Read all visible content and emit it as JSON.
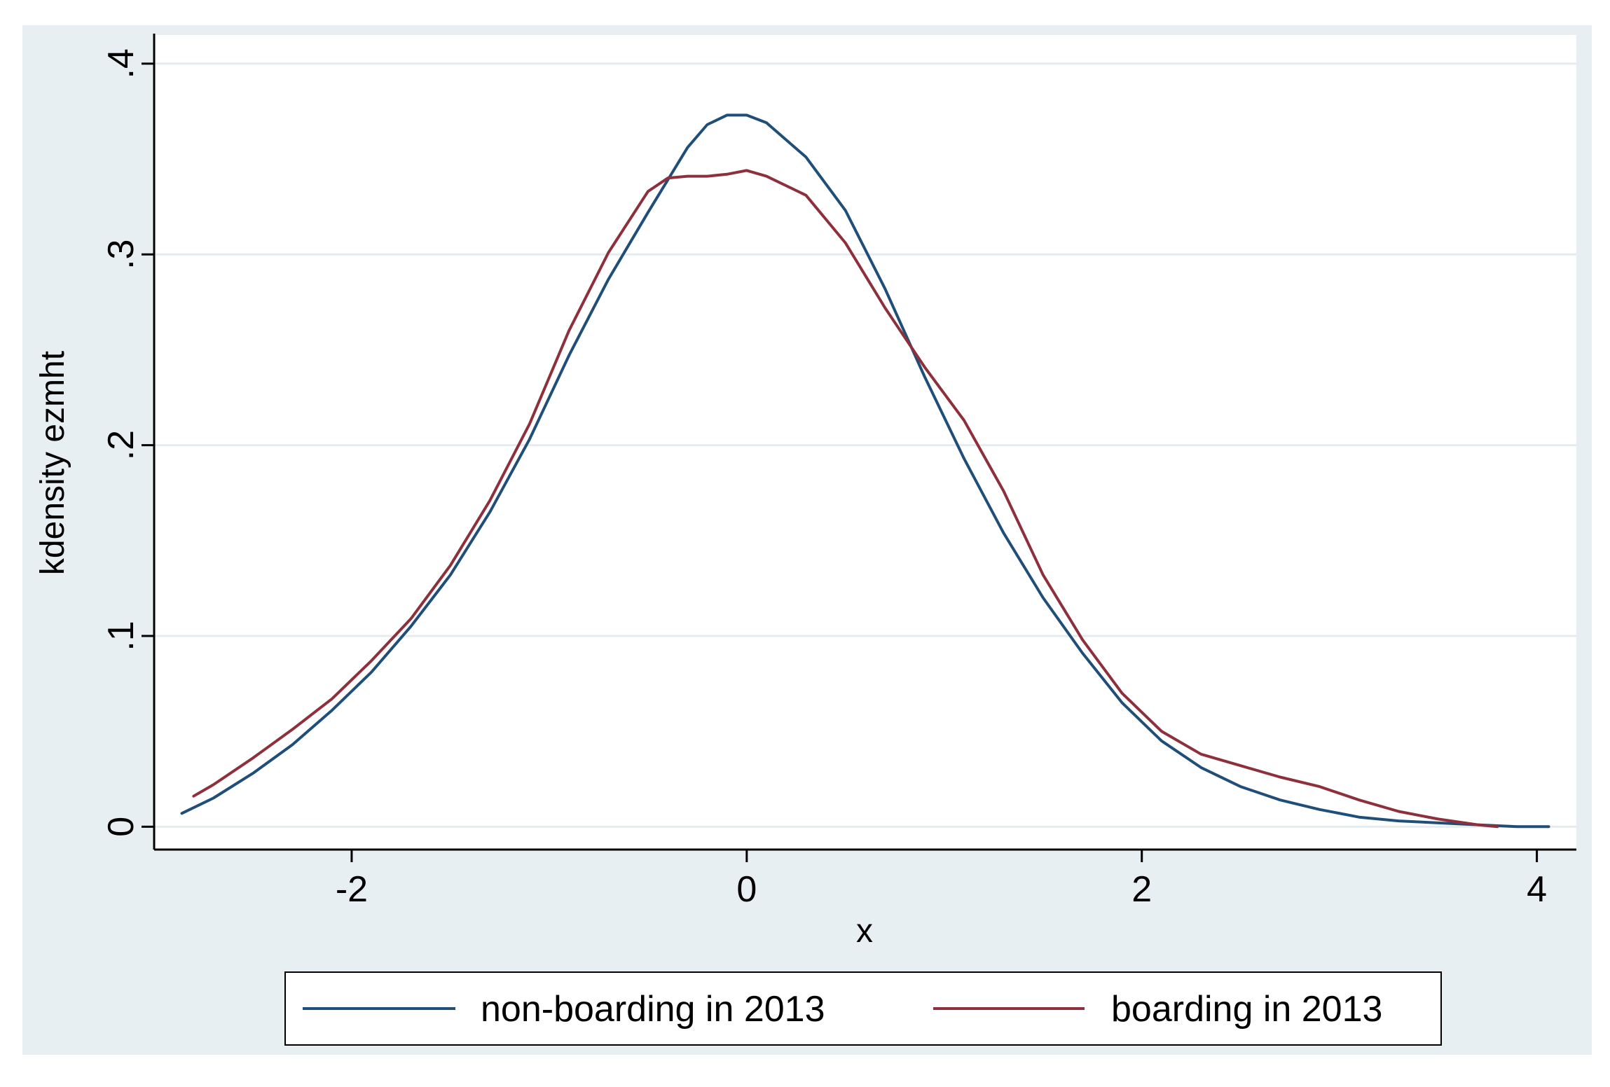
{
  "chart_data": {
    "type": "line",
    "title": "",
    "xlabel": "x",
    "ylabel": "kdensity ezmht",
    "xlim": [
      -3.0,
      4.2
    ],
    "ylim": [
      -0.012,
      0.415
    ],
    "xticks": [
      -2,
      0,
      2,
      4
    ],
    "xtick_labels": [
      "-2",
      "0",
      "2",
      "4"
    ],
    "yticks": [
      0,
      0.1,
      0.2,
      0.3,
      0.4
    ],
    "ytick_labels": [
      "0",
      ".1",
      ".2",
      ".3",
      ".4"
    ],
    "grid": true,
    "legend_position": "bottom",
    "colors": {
      "background": "#e8eff2",
      "plot_background": "#ffffff",
      "grid": "#e4ecef",
      "non_boarding": "#1f4e79",
      "boarding": "#8e2f3c"
    },
    "series": [
      {
        "name": "non-boarding in 2013",
        "color": "#1f4e79",
        "x": [
          -2.86,
          -2.7,
          -2.5,
          -2.3,
          -2.1,
          -1.9,
          -1.7,
          -1.5,
          -1.3,
          -1.1,
          -0.9,
          -0.7,
          -0.5,
          -0.3,
          -0.2,
          -0.1,
          0.0,
          0.1,
          0.3,
          0.5,
          0.7,
          0.9,
          1.1,
          1.3,
          1.5,
          1.7,
          1.9,
          2.1,
          2.3,
          2.5,
          2.7,
          2.9,
          3.1,
          3.3,
          3.5,
          3.7,
          3.9,
          4.06
        ],
        "y": [
          0.007,
          0.015,
          0.028,
          0.043,
          0.061,
          0.081,
          0.105,
          0.132,
          0.165,
          0.203,
          0.247,
          0.287,
          0.322,
          0.356,
          0.368,
          0.373,
          0.373,
          0.369,
          0.351,
          0.323,
          0.282,
          0.236,
          0.193,
          0.154,
          0.12,
          0.091,
          0.065,
          0.045,
          0.031,
          0.021,
          0.014,
          0.009,
          0.005,
          0.003,
          0.002,
          0.001,
          0.0,
          0.0
        ]
      },
      {
        "name": "boarding in 2013",
        "color": "#8e2f3c",
        "x": [
          -2.8,
          -2.7,
          -2.5,
          -2.3,
          -2.1,
          -1.9,
          -1.7,
          -1.5,
          -1.3,
          -1.1,
          -0.9,
          -0.7,
          -0.5,
          -0.4,
          -0.3,
          -0.2,
          -0.1,
          0.0,
          0.1,
          0.3,
          0.5,
          0.7,
          0.9,
          1.1,
          1.3,
          1.5,
          1.7,
          1.9,
          2.1,
          2.3,
          2.5,
          2.7,
          2.9,
          3.1,
          3.3,
          3.5,
          3.7,
          3.8
        ],
        "y": [
          0.016,
          0.022,
          0.036,
          0.051,
          0.067,
          0.087,
          0.109,
          0.137,
          0.171,
          0.211,
          0.26,
          0.301,
          0.333,
          0.34,
          0.341,
          0.341,
          0.342,
          0.344,
          0.341,
          0.331,
          0.306,
          0.272,
          0.241,
          0.213,
          0.176,
          0.132,
          0.098,
          0.07,
          0.05,
          0.038,
          0.032,
          0.026,
          0.021,
          0.014,
          0.008,
          0.004,
          0.001,
          0.0
        ]
      }
    ]
  }
}
